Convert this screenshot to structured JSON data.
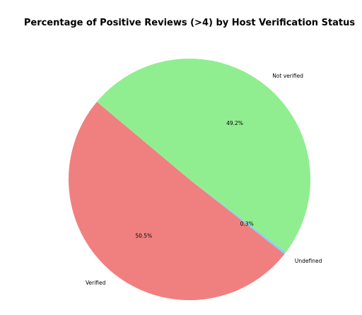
{
  "chart_data": {
    "type": "pie",
    "title": "Percentage of Positive Reviews (>4) by Host Verification Status",
    "categories": [
      "Verified",
      "Undefined",
      "Not verified"
    ],
    "values": [
      50.5,
      0.3,
      49.2
    ],
    "percent_labels": [
      "50.5%",
      "0.3%",
      "49.2%"
    ],
    "colors": [
      "#f08080",
      "#87cefa",
      "#90ee90"
    ],
    "start_angle_deg": 140,
    "direction": "counterclockwise",
    "legend": "none"
  }
}
